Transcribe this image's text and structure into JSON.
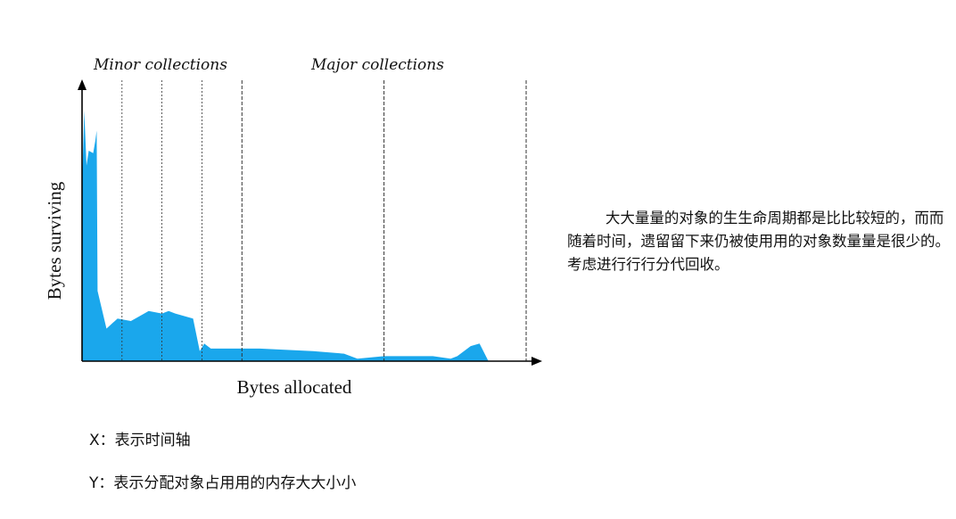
{
  "chart_data": {
    "type": "area",
    "title": "",
    "xlabel": "Bytes allocated",
    "ylabel": "Bytes surviving",
    "region_labels": [
      "Minor collections",
      "Major collections"
    ],
    "x_range": [
      0,
      100
    ],
    "y_range": [
      0,
      100
    ],
    "minor_collection_marks": [
      9,
      18,
      27
    ],
    "major_collection_marks": [
      36,
      68,
      100
    ],
    "series": [
      {
        "color": "#1aa7ec",
        "x": [
          0,
          0.5,
          1,
          1.5,
          2.5,
          3,
          3.3,
          3.5,
          5.5,
          8,
          11,
          14,
          15,
          18,
          19.5,
          21,
          25,
          26.5,
          27.5,
          29,
          30,
          40,
          52,
          59,
          62,
          68,
          74,
          79,
          83,
          84.5,
          87.5,
          89.5,
          91.5
        ],
        "y": [
          70,
          100,
          78,
          84,
          83,
          88,
          92,
          28,
          13,
          17,
          16,
          19,
          20,
          19,
          20,
          19,
          17,
          4,
          7,
          5,
          5,
          5,
          4,
          3,
          1,
          2,
          2,
          2,
          1,
          2,
          6,
          7,
          0
        ]
      }
    ]
  },
  "labels": {
    "minor": "Minor collections",
    "major": "Major collections",
    "x_axis": "Bytes allocated",
    "y_axis": "Bytes surviving"
  },
  "description_text": "大大量量的对象的生生命周期都是比比较短的，而而随着时间，遗留留下来仍被使用用的对象数量量是很少的。考虑进行行行分代回收。",
  "notes": {
    "x_note": "X：表示时间轴",
    "y_note": "Y：表示分配对象占用用的内存大大小小"
  }
}
